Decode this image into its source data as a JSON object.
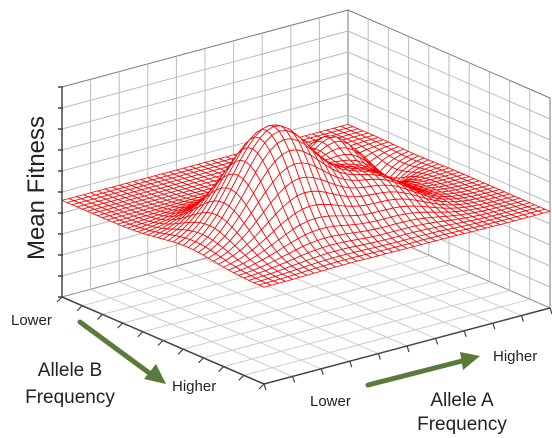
{
  "chart_data": {
    "type": "surface",
    "zlabel": "Mean Fitness",
    "x_axis": {
      "name_line1": "Allele A",
      "name_line2": "Frequency",
      "low": "Lower",
      "high": "Higher"
    },
    "y_axis": {
      "name_line1": "Allele B",
      "name_line2": "Frequency",
      "low": "Lower",
      "high": "Higher"
    },
    "grid": true,
    "surface_color": "#ff0000",
    "arrow_color": "#5a7a3a",
    "resolution": 40,
    "baseline": 0,
    "peaks": [
      {
        "x": 0.3,
        "y": 0.38,
        "height": 1.0,
        "width": 0.13
      },
      {
        "x": 0.62,
        "y": 0.55,
        "height": 0.52,
        "width": 0.09
      },
      {
        "x": 0.6,
        "y": 0.3,
        "height": 0.32,
        "width": 0.11
      },
      {
        "x": 0.78,
        "y": 0.66,
        "height": -0.45,
        "width": 0.08
      }
    ]
  }
}
